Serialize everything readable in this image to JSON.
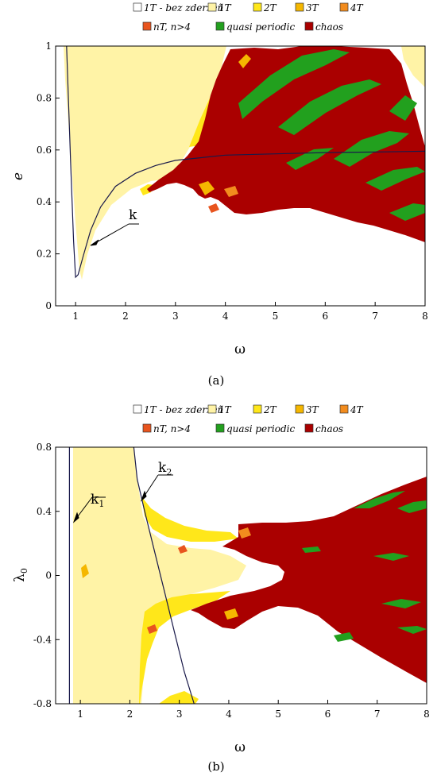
{
  "chart_data": [
    {
      "type": "area",
      "panel_label": "(a)",
      "xlabel": "ω",
      "ylabel": "e",
      "xlim": [
        0.6,
        8
      ],
      "ylim": [
        0,
        1
      ],
      "xticks": [
        "1",
        "2",
        "3",
        "4",
        "5",
        "6",
        "7",
        "8"
      ],
      "yticks": [
        "0",
        "0.2",
        "0.4",
        "0.6",
        "0.8",
        "1"
      ],
      "legend": [
        {
          "label": "1T - bez zderzeñ",
          "color": "#ffffff"
        },
        {
          "label": "1T",
          "color": "#fff3a6"
        },
        {
          "label": "2T",
          "color": "#ffe71a"
        },
        {
          "label": "3T",
          "color": "#f5b700"
        },
        {
          "label": "4T",
          "color": "#f28c1e"
        },
        {
          "label": "nT, n>4",
          "color": "#e8541e"
        },
        {
          "label": "quasi periodic",
          "color": "#22a01e"
        },
        {
          "label": "chaos",
          "color": "#aa0000"
        }
      ],
      "curves": [
        {
          "name": "k",
          "x": [
            0.82,
            0.9,
            0.96,
            1.0,
            1.05,
            1.15,
            1.3,
            1.5,
            1.8,
            2.2,
            2.6,
            3.0,
            3.5,
            4.0,
            5.0,
            6.0,
            7.0,
            8.0
          ],
          "y": [
            1.0,
            0.55,
            0.25,
            0.11,
            0.12,
            0.19,
            0.29,
            0.38,
            0.46,
            0.51,
            0.54,
            0.56,
            0.57,
            0.58,
            0.585,
            0.59,
            0.592,
            0.595
          ]
        }
      ],
      "annotation": {
        "text": "k",
        "at_x": 1.25,
        "at_y": 0.24
      }
    },
    {
      "type": "area",
      "panel_label": "(b)",
      "xlabel": "ω",
      "ylabel": "λ0",
      "xlim": [
        0.5,
        8
      ],
      "ylim": [
        -0.8,
        0.8
      ],
      "xticks": [
        "1",
        "2",
        "3",
        "4",
        "5",
        "6",
        "7",
        "8"
      ],
      "yticks": [
        "0.8",
        "0.4",
        "0",
        "-0.4",
        "-0.8"
      ],
      "legend": [
        {
          "label": "1T - bez zderzeñ",
          "color": "#ffffff"
        },
        {
          "label": "1T",
          "color": "#fff3a6"
        },
        {
          "label": "2T",
          "color": "#ffe71a"
        },
        {
          "label": "3T",
          "color": "#f5b700"
        },
        {
          "label": "4T",
          "color": "#f28c1e"
        },
        {
          "label": "nT, n>4",
          "color": "#e8541e"
        },
        {
          "label": "quasi periodic",
          "color": "#22a01e"
        },
        {
          "label": "chaos",
          "color": "#aa0000"
        }
      ],
      "curves": [
        {
          "name": "k1",
          "x": [
            0.78,
            0.78
          ],
          "y": [
            -0.8,
            0.8
          ]
        },
        {
          "name": "k2",
          "x": [
            2.08,
            2.15,
            2.3,
            2.5,
            2.7,
            2.9,
            3.1,
            3.3
          ],
          "y": [
            0.8,
            0.6,
            0.4,
            0.15,
            -0.1,
            -0.35,
            -0.6,
            -0.8
          ]
        }
      ],
      "annotations": [
        {
          "text": "k1",
          "at_x": 0.78,
          "at_y": 0.32
        },
        {
          "text": "k2",
          "at_x": 2.18,
          "at_y": 0.48
        }
      ]
    }
  ]
}
